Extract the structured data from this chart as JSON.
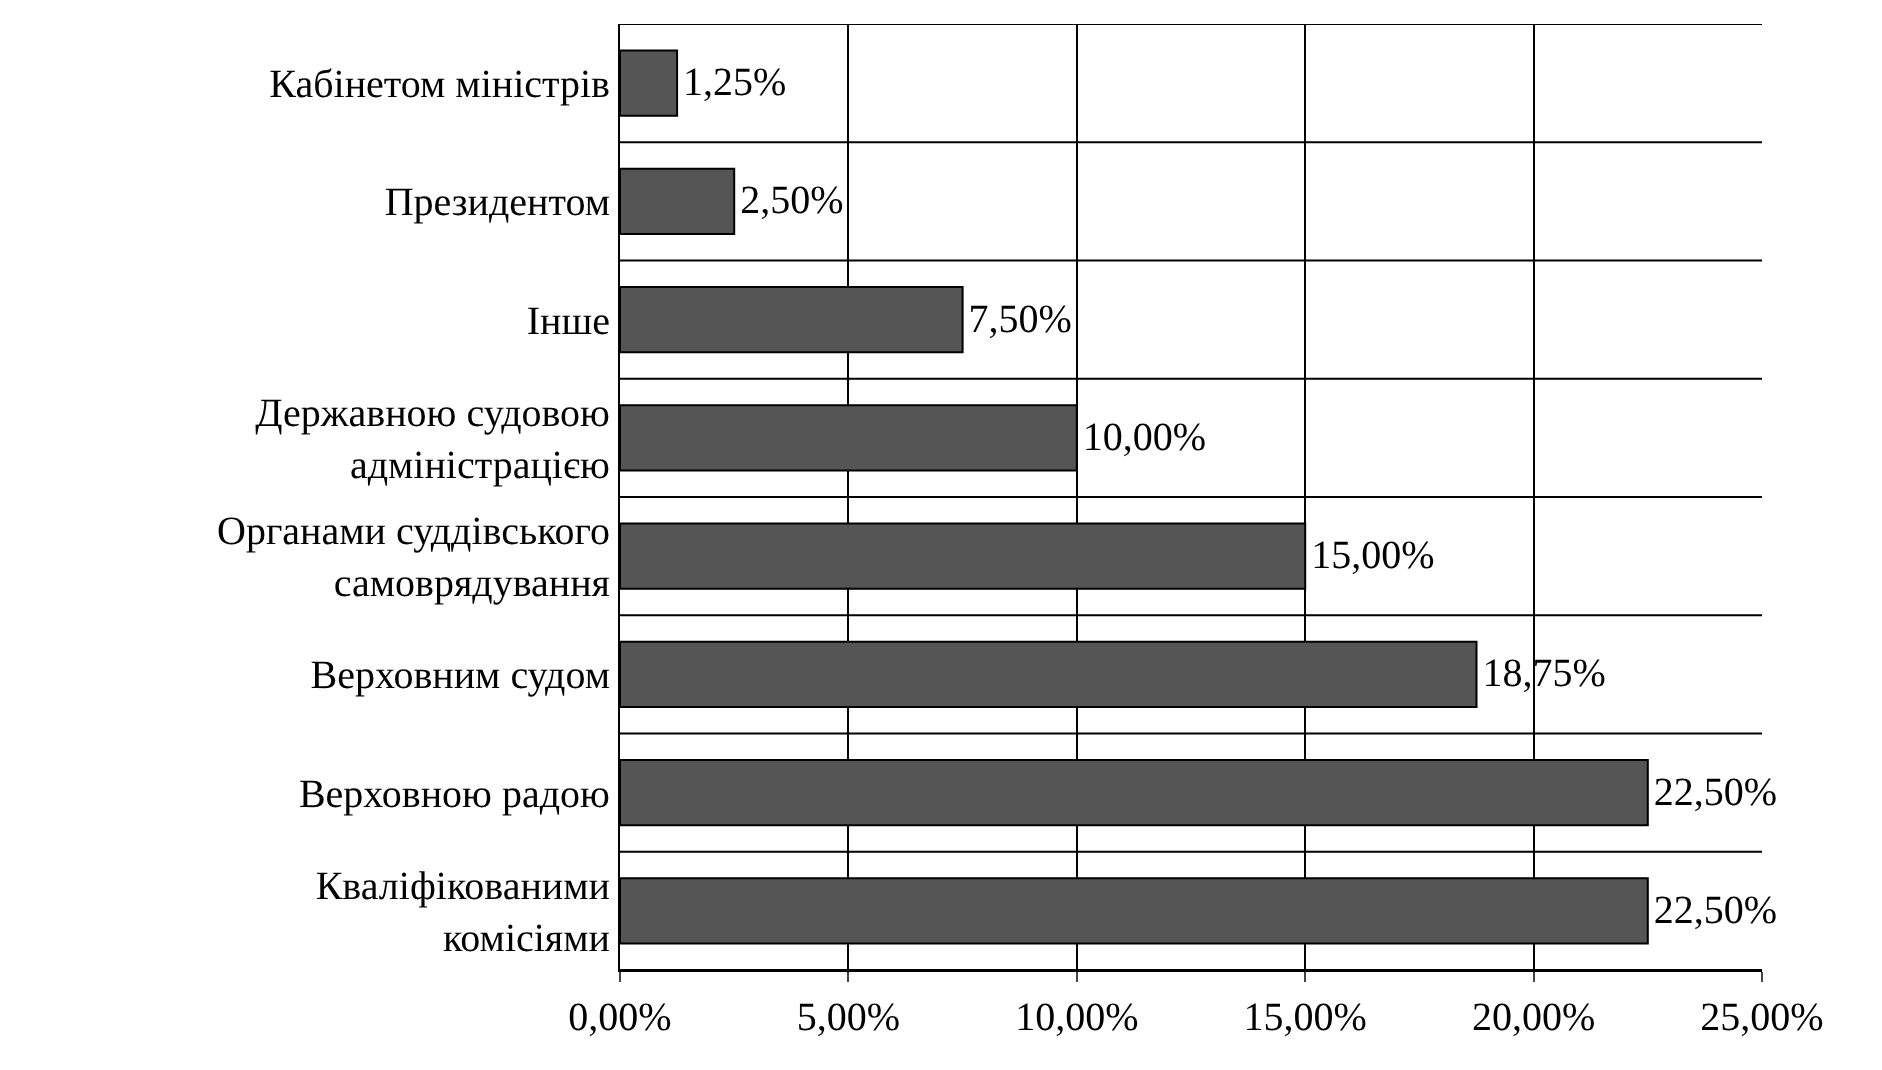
{
  "chart_data": {
    "type": "bar",
    "orientation": "horizontal",
    "categories": [
      "Кабінетом міністрів",
      "Президентом",
      "Інше",
      "Державною судовою адміністрацією",
      "Органами суддівського самоврядування",
      "Верховним судом",
      "Верховною радою",
      "Кваліфікованими комісіями"
    ],
    "values": [
      1.25,
      2.5,
      7.5,
      10,
      15,
      18.75,
      22.5,
      22.5
    ],
    "value_labels": [
      "1,25%",
      "2,50%",
      "7,50%",
      "10,00%",
      "15,00%",
      "18,75%",
      "22,50%",
      "22,50%"
    ],
    "color": "#555555",
    "xlim": [
      0,
      25
    ],
    "xticks": [
      {
        "value": 0,
        "label": "0,00%"
      },
      {
        "value": 5,
        "label": "5,00%"
      },
      {
        "value": 10,
        "label": "10,00%"
      },
      {
        "value": 15,
        "label": "15,00%"
      },
      {
        "value": 20,
        "label": "20,00%"
      },
      {
        "value": 25,
        "label": "25,00%"
      }
    ],
    "grid": true
  }
}
